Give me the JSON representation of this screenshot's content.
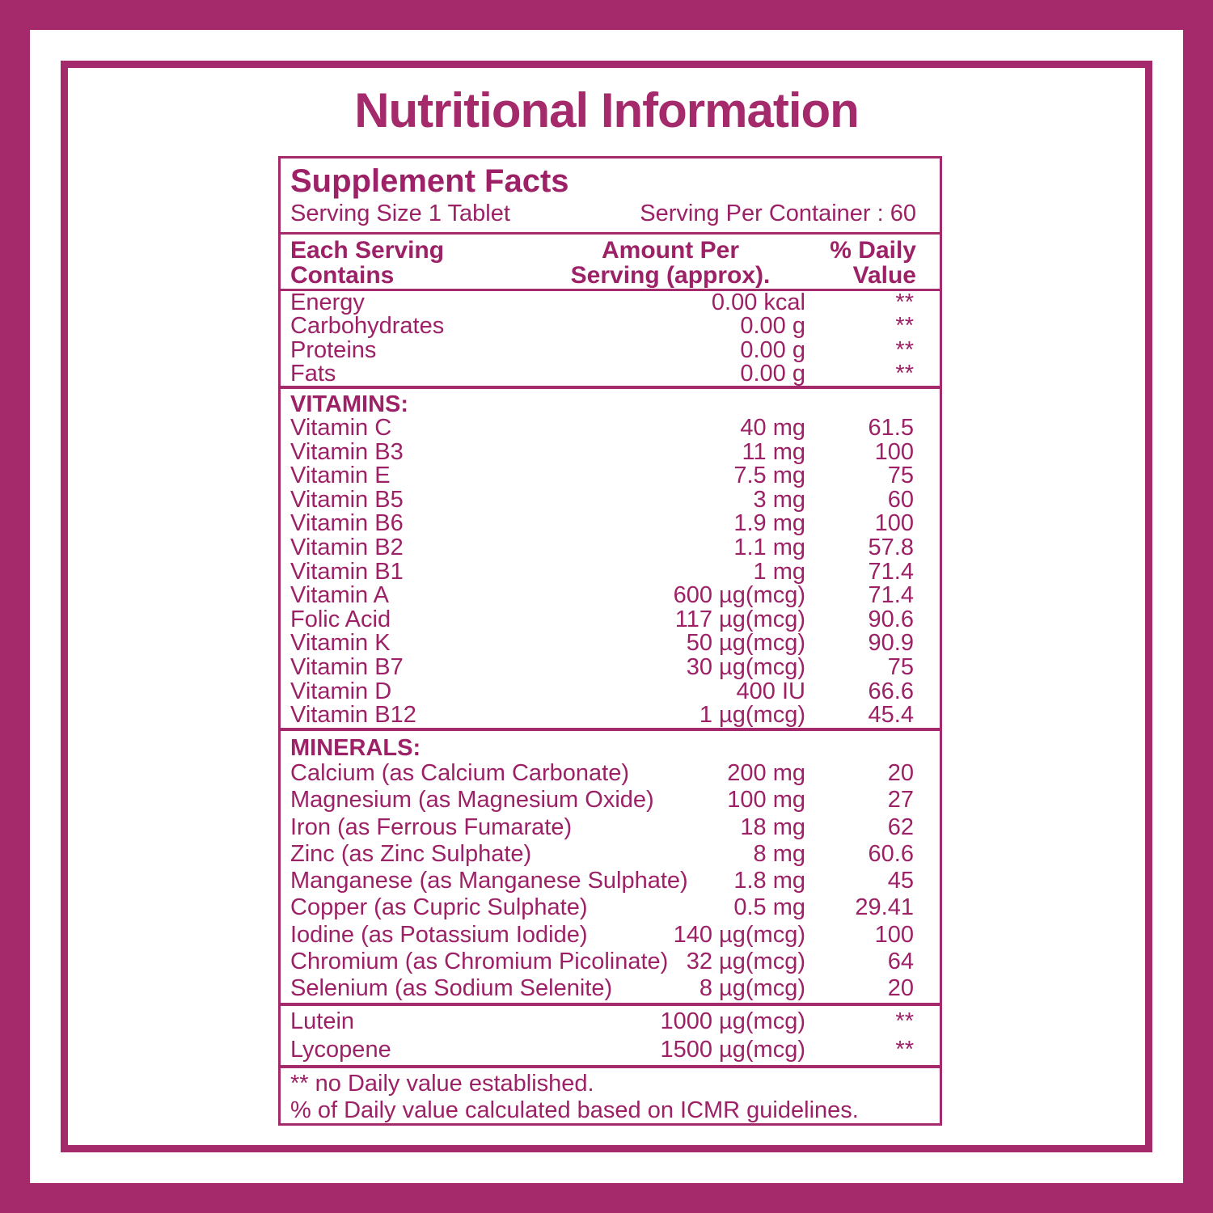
{
  "page": {
    "title": "Nutritional Information"
  },
  "colors": {
    "accent": "#A42A6B",
    "text": "#9C2166",
    "background": "#FFFFFF"
  },
  "facts": {
    "heading": "Supplement Facts",
    "serving_size": "Serving Size 1 Tablet",
    "serving_per_container": "Serving Per Container : 60",
    "header": {
      "col1_line1": "Each Serving",
      "col1_line2": "Contains",
      "col2_line1": "Amount Per",
      "col2_line2": "Serving (approx).",
      "col3_line1": "% Daily",
      "col3_line2": "Value"
    },
    "macros": [
      {
        "name": "Energy",
        "amount": "0.00 kcal",
        "daily": "**"
      },
      {
        "name": "Carbohydrates",
        "amount": "0.00 g",
        "daily": "**"
      },
      {
        "name": "Proteins",
        "amount": "0.00 g",
        "daily": "**"
      },
      {
        "name": "Fats",
        "amount": "0.00 g",
        "daily": "**"
      }
    ],
    "vitamins_heading": "VITAMINS:",
    "vitamins": [
      {
        "name": "Vitamin C",
        "amount": "40 mg",
        "daily": "61.5"
      },
      {
        "name": "Vitamin B3",
        "amount": "11 mg",
        "daily": "100"
      },
      {
        "name": "Vitamin E",
        "amount": "7.5 mg",
        "daily": "75"
      },
      {
        "name": "Vitamin B5",
        "amount": "3 mg",
        "daily": "60"
      },
      {
        "name": "Vitamin B6",
        "amount": "1.9 mg",
        "daily": "100"
      },
      {
        "name": "Vitamin B2",
        "amount": "1.1 mg",
        "daily": "57.8"
      },
      {
        "name": "Vitamin B1",
        "amount": "1 mg",
        "daily": "71.4"
      },
      {
        "name": "Vitamin A",
        "amount": "600 µg(mcg)",
        "daily": "71.4"
      },
      {
        "name": "Folic Acid",
        "amount": "117 µg(mcg)",
        "daily": "90.6"
      },
      {
        "name": "Vitamin K",
        "amount": "50 µg(mcg)",
        "daily": "90.9"
      },
      {
        "name": "Vitamin B7",
        "amount": "30 µg(mcg)",
        "daily": "75"
      },
      {
        "name": "Vitamin D",
        "amount": "400 IU",
        "daily": "66.6"
      },
      {
        "name": "Vitamin B12",
        "amount": "1 µg(mcg)",
        "daily": "45.4"
      }
    ],
    "minerals_heading": "MINERALS:",
    "minerals": [
      {
        "name": "Calcium (as Calcium Carbonate)",
        "amount": "200 mg",
        "daily": "20"
      },
      {
        "name": "Magnesium (as Magnesium Oxide)",
        "amount": "100 mg",
        "daily": "27"
      },
      {
        "name": "Iron (as Ferrous Fumarate)",
        "amount": "18 mg",
        "daily": "62"
      },
      {
        "name": "Zinc (as Zinc Sulphate)",
        "amount": "8 mg",
        "daily": "60.6"
      },
      {
        "name": "Manganese (as Manganese Sulphate)",
        "amount": "1.8 mg",
        "daily": "45"
      },
      {
        "name": "Copper (as Cupric Sulphate)",
        "amount": "0.5 mg",
        "daily": "29.41"
      },
      {
        "name": "Iodine (as Potassium Iodide)",
        "amount": "140 µg(mcg)",
        "daily": "100"
      },
      {
        "name": "Chromium (as Chromium Picolinate)",
        "amount": "32 µg(mcg)",
        "daily": "64"
      },
      {
        "name": "Selenium (as Sodium Selenite)",
        "amount": "8 µg(mcg)",
        "daily": "20"
      }
    ],
    "others": [
      {
        "name": "Lutein",
        "amount": "1000 µg(mcg)",
        "daily": "**"
      },
      {
        "name": "Lycopene",
        "amount": "1500 µg(mcg)",
        "daily": "**"
      }
    ],
    "footnotes": [
      "** no Daily value established.",
      "% of Daily value calculated based on ICMR guidelines."
    ]
  }
}
